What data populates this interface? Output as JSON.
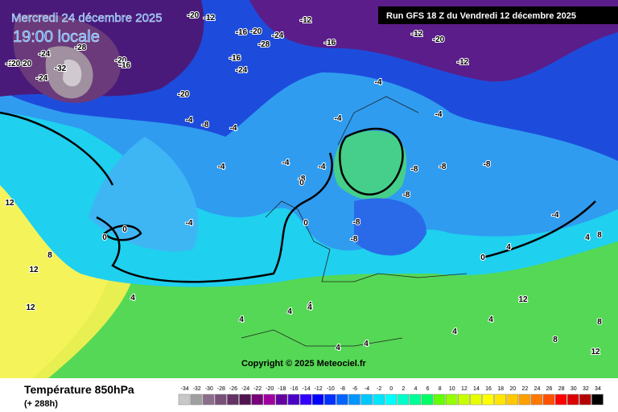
{
  "header": {
    "date": "Mercredi 24 décembre 2025",
    "time": "19:00 locale",
    "run": "Run GFS 18 Z du Vendredi 12 décembre 2025"
  },
  "copyright": "Copyright © 2025 Meteociel.fr",
  "footer": {
    "title": "Température 850hPa",
    "lead": "(+ 288h)"
  },
  "legend": {
    "labels": [
      -34,
      -32,
      -30,
      -28,
      -26,
      -24,
      -22,
      -20,
      -18,
      -16,
      -14,
      -12,
      -10,
      -8,
      -6,
      -4,
      -2,
      0,
      2,
      4,
      6,
      8,
      10,
      12,
      14,
      16,
      18,
      20,
      22,
      24,
      26,
      28,
      30,
      32,
      34
    ],
    "colors": [
      "#c8c8c8",
      "#a0a0a0",
      "#8c6e8c",
      "#785078",
      "#643264",
      "#501450",
      "#780078",
      "#a000a0",
      "#6400a0",
      "#4b00c8",
      "#3200ff",
      "#0000ff",
      "#0032ff",
      "#0064ff",
      "#0096ff",
      "#00c8ff",
      "#00e6ff",
      "#00ffff",
      "#00ffc8",
      "#00ff96",
      "#00ff64",
      "#64ff00",
      "#96ff00",
      "#c8ff00",
      "#e6ff00",
      "#ffff00",
      "#ffe600",
      "#ffc800",
      "#ffa000",
      "#ff7800",
      "#ff5000",
      "#ff0000",
      "#dc0000",
      "#b40000",
      "#000000"
    ]
  },
  "contour_labels": [
    -20,
    -20,
    -24,
    -32,
    -28,
    -20,
    -16,
    -20,
    -12,
    -16,
    -20,
    -24,
    -28,
    -12,
    -16,
    -20,
    -12,
    -12,
    -20,
    -24,
    -16,
    -20,
    -24,
    -4,
    -8,
    -4,
    -4,
    -8,
    -4,
    -4,
    -4,
    -8,
    -8,
    -8,
    -8,
    -8,
    -8,
    -4,
    -4,
    -4,
    -4,
    0,
    0,
    0,
    0,
    0,
    4,
    4,
    4,
    4,
    4,
    4,
    4,
    8,
    8,
    12,
    12,
    12,
    12,
    12,
    4,
    4,
    4,
    8,
    8,
    4
  ]
}
